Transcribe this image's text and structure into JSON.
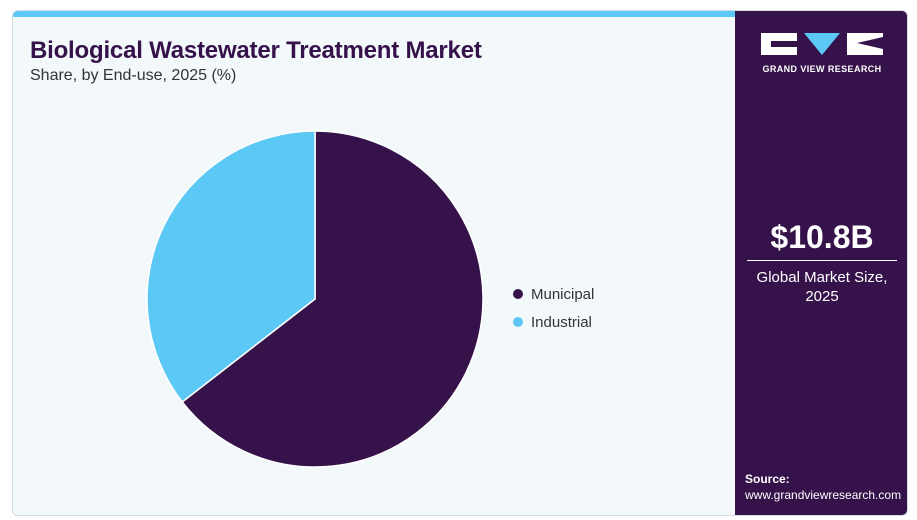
{
  "colors": {
    "brand_dark": "#35124a",
    "accent_blue": "#5cc8f5",
    "panel_bg": "#f3f8fb"
  },
  "header": {
    "title": "Biological Wastewater Treatment Market",
    "subtitle": "Share, by End-use, 2025 (%)"
  },
  "sidebar": {
    "logo_text": "GRAND VIEW RESEARCH",
    "logo_icon": "gvr-logo-icon",
    "market_size": "$10.8B",
    "market_size_label": "Global Market Size, 2025",
    "source_label": "Source:",
    "source_url": "www.grandviewresearch.com"
  },
  "chart_data": {
    "type": "pie",
    "categories": [
      "Municipal",
      "Industrial"
    ],
    "values": [
      64.5,
      35.5
    ],
    "colors": [
      "#35124a",
      "#5cc8f5"
    ],
    "legend_position": "right",
    "start": "top",
    "direction": "clockwise"
  }
}
